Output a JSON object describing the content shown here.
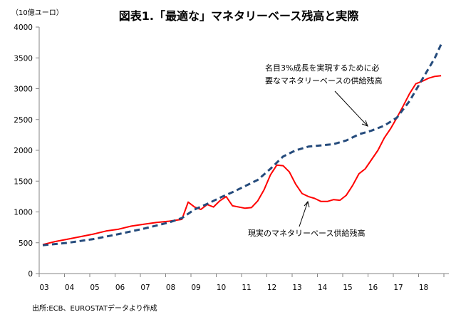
{
  "chart_data": {
    "type": "line",
    "title": "図表1.「最適な」マネタリーベース残高と実際",
    "ylabel": "（10億ユーロ）",
    "xlabel": "",
    "ylim": [
      0,
      4000
    ],
    "yticks": [
      0,
      500,
      1000,
      1500,
      2000,
      2500,
      3000,
      3500,
      4000
    ],
    "xtick_labels": [
      "03",
      "04",
      "05",
      "06",
      "07",
      "08",
      "09",
      "10",
      "11",
      "12",
      "13",
      "14",
      "15",
      "16",
      "17",
      "18"
    ],
    "xlim": [
      2003,
      2019
    ],
    "grid": false,
    "series": [
      {
        "name": "現実のマネタリーベース供給残高",
        "color": "#ff0000",
        "style": "solid",
        "x": [
          2003,
          2003.5,
          2004,
          2004.5,
          2005,
          2005.5,
          2006,
          2006.5,
          2007,
          2007.5,
          2008,
          2008.5,
          2008.75,
          2009,
          2009.25,
          2009.5,
          2009.75,
          2010,
          2010.25,
          2010.5,
          2011,
          2011.25,
          2011.5,
          2011.75,
          2012,
          2012.25,
          2012.5,
          2012.75,
          2013,
          2013.25,
          2013.5,
          2013.75,
          2014,
          2014.25,
          2014.5,
          2014.75,
          2015,
          2015.25,
          2015.5,
          2015.75,
          2016,
          2016.25,
          2016.5,
          2016.75,
          2017,
          2017.25,
          2017.5,
          2017.75,
          2018,
          2018.25,
          2018.5,
          2018.75
        ],
        "values": [
          470,
          520,
          560,
          600,
          640,
          690,
          720,
          770,
          800,
          830,
          850,
          880,
          1160,
          1080,
          1040,
          1120,
          1080,
          1180,
          1250,
          1100,
          1060,
          1070,
          1180,
          1360,
          1600,
          1760,
          1750,
          1650,
          1450,
          1300,
          1250,
          1220,
          1170,
          1170,
          1200,
          1190,
          1270,
          1430,
          1620,
          1700,
          1850,
          2000,
          2200,
          2350,
          2530,
          2720,
          2920,
          3080,
          3120,
          3170,
          3200,
          3210
        ]
      },
      {
        "name": "名目3%成長を実現するために必要なマネタリーベースの供給残高",
        "color": "#254b7c",
        "style": "dashed",
        "x": [
          2003,
          2004,
          2005,
          2006,
          2007,
          2008,
          2008.5,
          2009,
          2009.5,
          2010,
          2010.5,
          2011,
          2011.5,
          2012,
          2012.5,
          2013,
          2013.5,
          2014,
          2014.5,
          2015,
          2015.5,
          2016,
          2016.5,
          2017,
          2017.5,
          2018,
          2018.5,
          2018.75
        ],
        "values": [
          460,
          500,
          560,
          640,
          730,
          830,
          900,
          1040,
          1130,
          1230,
          1320,
          1420,
          1520,
          1700,
          1900,
          2000,
          2060,
          2080,
          2100,
          2160,
          2260,
          2320,
          2400,
          2530,
          2800,
          3150,
          3500,
          3720
        ]
      }
    ],
    "annotations": {
      "target_line1": "名目3%成長を実現するために必",
      "target_line2": "要なマネタリーベースの供給残高",
      "actual": "現実のマネタリーベース供給残高"
    },
    "source": "出所:ECB、EUROSTATデータより作成"
  }
}
